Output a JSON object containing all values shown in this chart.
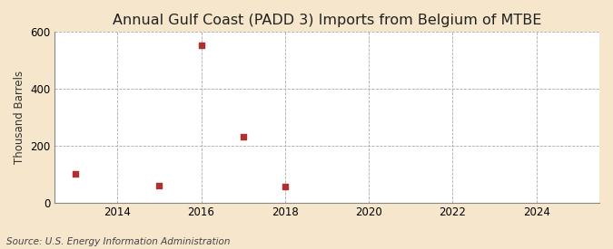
{
  "title": "Annual Gulf Coast (PADD 3) Imports from Belgium of MTBE",
  "ylabel": "Thousand Barrels",
  "source": "Source: U.S. Energy Information Administration",
  "figure_bg_color": "#f5e6cc",
  "plot_bg_color": "#ffffff",
  "data_points": {
    "2013": 100,
    "2015": 60,
    "2016": 553,
    "2017": 230,
    "2018": 55
  },
  "xmin": 2012.5,
  "xmax": 2025.5,
  "ymin": 0,
  "ymax": 600,
  "yticks": [
    0,
    200,
    400,
    600
  ],
  "xticks": [
    2014,
    2016,
    2018,
    2020,
    2022,
    2024
  ],
  "marker_color": "#b03030",
  "marker_size": 5,
  "grid_color": "#aaaaaa",
  "grid_linestyle": "--",
  "title_fontsize": 11.5,
  "label_fontsize": 8.5,
  "tick_fontsize": 8.5,
  "source_fontsize": 7.5
}
